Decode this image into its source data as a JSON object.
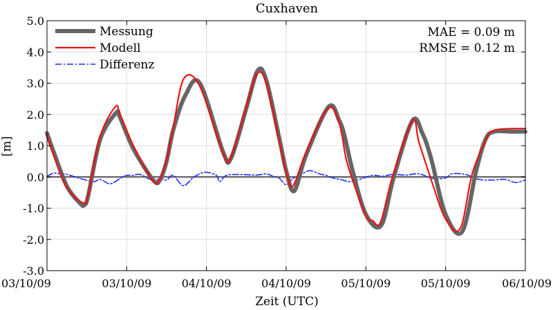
{
  "chart_data": {
    "type": "line",
    "title": "Cuxhaven",
    "xlabel": "Zeit (UTC)",
    "ylabel": "[m]",
    "xlim": [
      0,
      72
    ],
    "ylim": [
      -3.0,
      5.0
    ],
    "x_ticks": [
      0,
      12,
      24,
      36,
      48,
      60,
      72
    ],
    "x_tick_labels": [
      "03/10/09",
      "03/10/09",
      "04/10/09",
      "04/10/09",
      "05/10/09",
      "05/10/09",
      "06/10/09"
    ],
    "y_ticks": [
      -3,
      -2,
      -1,
      0,
      1,
      2,
      3,
      4,
      5
    ],
    "y_tick_labels": [
      "-3.0",
      "-2.0",
      "-1.0",
      "0.0",
      "1.0",
      "2.0",
      "3.0",
      "4.0",
      "5.0"
    ],
    "grid": true,
    "legend_position": "top-left",
    "stats": [
      "MAE = 0.09 m",
      "RMSE = 0.12 m"
    ],
    "series": [
      {
        "name": "Messung",
        "color": "#666666",
        "style": "solid",
        "x": [
          0,
          1,
          3,
          5,
          5.6,
          6.2,
          8,
          10.4,
          11,
          13,
          16,
          17,
          18,
          19,
          20.8,
          23,
          26.5,
          27.7,
          30,
          31.7,
          33,
          35,
          36,
          37.2,
          39,
          42.4,
          44,
          44.8,
          46,
          48,
          50.3,
          52.2,
          55,
          56.5,
          57.8,
          60,
          62.5,
          64.6,
          66,
          67.3,
          70,
          72
        ],
        "y": [
          1.4,
          0.8,
          -0.3,
          -0.85,
          -0.9,
          -0.6,
          1.2,
          2.05,
          1.9,
          0.9,
          -0.1,
          -0.1,
          0.5,
          1.5,
          2.6,
          3.0,
          0.8,
          0.6,
          2.2,
          3.4,
          3.1,
          1.2,
          0.2,
          -0.45,
          0.7,
          2.25,
          1.8,
          1.3,
          0.2,
          -1.2,
          -1.55,
          0.0,
          1.8,
          1.4,
          0.6,
          -1.2,
          -1.75,
          0.2,
          1.2,
          1.45,
          1.45,
          1.45
        ]
      },
      {
        "name": "Modell",
        "color": "#ee1111",
        "style": "solid",
        "x": [
          0,
          1,
          3,
          5.6,
          6.2,
          8,
          10.3,
          11,
          13,
          16,
          17,
          18,
          19,
          20.6,
          23,
          26.5,
          27.7,
          30,
          31.6,
          33,
          35,
          36,
          37,
          39,
          42.3,
          44,
          45,
          46,
          48,
          49,
          50.2,
          52,
          55,
          56,
          58,
          60,
          62.2,
          64,
          66,
          67.4,
          72
        ],
        "y": [
          1.35,
          0.7,
          -0.35,
          -0.85,
          -0.55,
          1.3,
          2.25,
          2.0,
          1.0,
          -0.15,
          -0.05,
          0.55,
          1.6,
          3.15,
          2.9,
          0.75,
          0.65,
          2.25,
          3.3,
          3.0,
          1.1,
          0.15,
          -0.3,
          0.8,
          2.2,
          1.7,
          0.6,
          -0.1,
          -1.25,
          -1.4,
          -1.45,
          0.0,
          1.8,
          1.1,
          -0.2,
          -1.35,
          -1.65,
          0.1,
          1.15,
          1.5,
          1.55
        ]
      },
      {
        "name": "Differenz",
        "color": "#1a2bff",
        "style": "dashdot",
        "x": [
          0,
          1,
          2,
          3,
          5,
          7,
          8,
          9.5,
          11,
          12,
          13,
          14,
          16,
          17,
          18,
          19,
          20.5,
          22,
          23,
          24,
          25.5,
          26,
          27,
          29,
          31.5,
          33,
          34,
          35,
          36,
          37,
          38,
          39.5,
          41,
          42,
          43,
          44.5,
          45.5,
          47,
          49,
          50.5,
          52,
          54,
          56,
          58,
          60,
          61,
          63,
          65,
          67,
          69,
          70.5,
          72
        ],
        "y": [
          0.02,
          0.12,
          0.1,
          0.08,
          -0.05,
          -0.15,
          -0.08,
          -0.22,
          -0.05,
          0.05,
          0.05,
          0.08,
          -0.12,
          -0.05,
          -0.1,
          0.05,
          -0.28,
          -0.02,
          0.1,
          0.15,
          0.05,
          -0.15,
          0.05,
          0.08,
          0.06,
          0.1,
          0.02,
          -0.05,
          -0.25,
          -0.05,
          0.05,
          0.2,
          0.1,
          0.05,
          -0.03,
          -0.1,
          -0.15,
          -0.08,
          0.05,
          0.02,
          0.08,
          0.06,
          0.1,
          -0.05,
          -0.03,
          0.1,
          0.08,
          -0.08,
          -0.1,
          -0.08,
          -0.18,
          -0.1
        ]
      }
    ]
  }
}
